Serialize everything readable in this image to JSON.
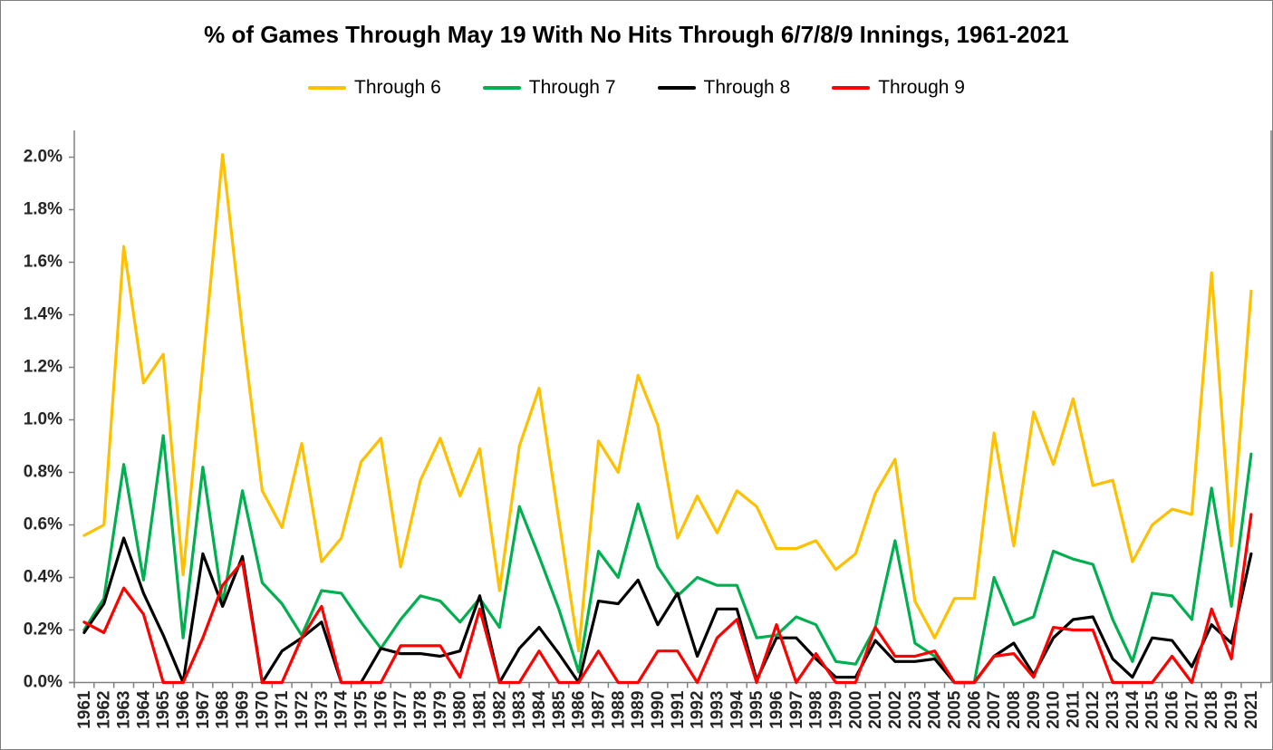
{
  "chart_data": {
    "type": "line",
    "title": "% of Games Through May 19 With No Hits Through 6/7/8/9 Innings, 1961-2021",
    "xlabel": "",
    "ylabel": "",
    "ylim": [
      0.0,
      2.0
    ],
    "y_ticks": [
      "0.0%",
      "0.2%",
      "0.4%",
      "0.6%",
      "0.8%",
      "1.0%",
      "1.2%",
      "1.4%",
      "1.6%",
      "1.8%",
      "2.0%"
    ],
    "grid": false,
    "legend_position": "top",
    "categories": [
      "1961",
      "1962",
      "1963",
      "1964",
      "1965",
      "1966",
      "1967",
      "1968",
      "1969",
      "1970",
      "1971",
      "1972",
      "1973",
      "1974",
      "1975",
      "1976",
      "1977",
      "1978",
      "1979",
      "1980",
      "1981",
      "1982",
      "1983",
      "1984",
      "1985",
      "1986",
      "1987",
      "1988",
      "1989",
      "1990",
      "1991",
      "1992",
      "1993",
      "1994",
      "1995",
      "1996",
      "1997",
      "1998",
      "1999",
      "2000",
      "2001",
      "2002",
      "2003",
      "2004",
      "2005",
      "2006",
      "2007",
      "2008",
      "2009",
      "2010",
      "2011",
      "2012",
      "2013",
      "2014",
      "2015",
      "2016",
      "2017",
      "2018",
      "2019",
      "2021"
    ],
    "series": [
      {
        "name": "Through 6",
        "color": "#FFC000",
        "values": [
          0.56,
          0.6,
          1.66,
          1.14,
          1.25,
          0.41,
          1.21,
          2.01,
          1.34,
          0.73,
          0.59,
          0.91,
          0.46,
          0.55,
          0.84,
          0.93,
          0.44,
          0.77,
          0.93,
          0.71,
          0.89,
          0.35,
          0.9,
          1.12,
          0.62,
          0.12,
          0.92,
          0.8,
          1.17,
          0.98,
          0.55,
          0.71,
          0.57,
          0.73,
          0.67,
          0.51,
          0.51,
          0.54,
          0.43,
          0.49,
          0.72,
          0.85,
          0.31,
          0.17,
          0.32,
          0.32,
          0.95,
          0.52,
          1.03,
          0.83,
          1.08,
          0.75,
          0.77,
          0.46,
          0.6,
          0.66,
          0.64,
          1.56,
          0.52,
          1.49
        ]
      },
      {
        "name": "Through 7",
        "color": "#00B050",
        "values": [
          0.2,
          0.32,
          0.83,
          0.39,
          0.94,
          0.17,
          0.82,
          0.3,
          0.73,
          0.38,
          0.3,
          0.18,
          0.35,
          0.34,
          0.23,
          0.13,
          0.24,
          0.33,
          0.31,
          0.23,
          0.32,
          0.21,
          0.67,
          0.48,
          0.28,
          0.04,
          0.5,
          0.4,
          0.68,
          0.44,
          0.33,
          0.4,
          0.37,
          0.37,
          0.17,
          0.18,
          0.25,
          0.22,
          0.08,
          0.07,
          0.21,
          0.54,
          0.15,
          0.1,
          0.0,
          0.0,
          0.4,
          0.22,
          0.25,
          0.5,
          0.47,
          0.45,
          0.24,
          0.08,
          0.34,
          0.33,
          0.24,
          0.74,
          0.29,
          0.87
        ]
      },
      {
        "name": "Through 8",
        "color": "#000000",
        "values": [
          0.19,
          0.3,
          0.55,
          0.34,
          0.18,
          0.0,
          0.49,
          0.29,
          0.48,
          0.0,
          0.12,
          0.17,
          0.23,
          0.0,
          0.0,
          0.13,
          0.11,
          0.11,
          0.1,
          0.12,
          0.33,
          0.0,
          0.13,
          0.21,
          0.11,
          0.0,
          0.31,
          0.3,
          0.39,
          0.22,
          0.34,
          0.1,
          0.28,
          0.28,
          0.01,
          0.17,
          0.17,
          0.09,
          0.02,
          0.02,
          0.16,
          0.08,
          0.08,
          0.09,
          0.0,
          0.0,
          0.1,
          0.15,
          0.03,
          0.17,
          0.24,
          0.25,
          0.09,
          0.02,
          0.17,
          0.16,
          0.06,
          0.22,
          0.15,
          0.49
        ]
      },
      {
        "name": "Through 9",
        "color": "#FF0000",
        "values": [
          0.23,
          0.19,
          0.36,
          0.26,
          0.0,
          0.0,
          0.17,
          0.37,
          0.46,
          0.0,
          0.0,
          0.17,
          0.29,
          0.0,
          0.0,
          0.0,
          0.14,
          0.14,
          0.14,
          0.02,
          0.28,
          0.0,
          0.0,
          0.12,
          0.0,
          0.0,
          0.12,
          0.0,
          0.0,
          0.12,
          0.12,
          0.0,
          0.17,
          0.24,
          0.0,
          0.22,
          0.0,
          0.11,
          0.0,
          0.0,
          0.21,
          0.1,
          0.1,
          0.12,
          0.0,
          0.0,
          0.1,
          0.11,
          0.02,
          0.21,
          0.2,
          0.2,
          0.0,
          0.0,
          0.0,
          0.1,
          0.0,
          0.28,
          0.09,
          0.64
        ]
      }
    ]
  }
}
